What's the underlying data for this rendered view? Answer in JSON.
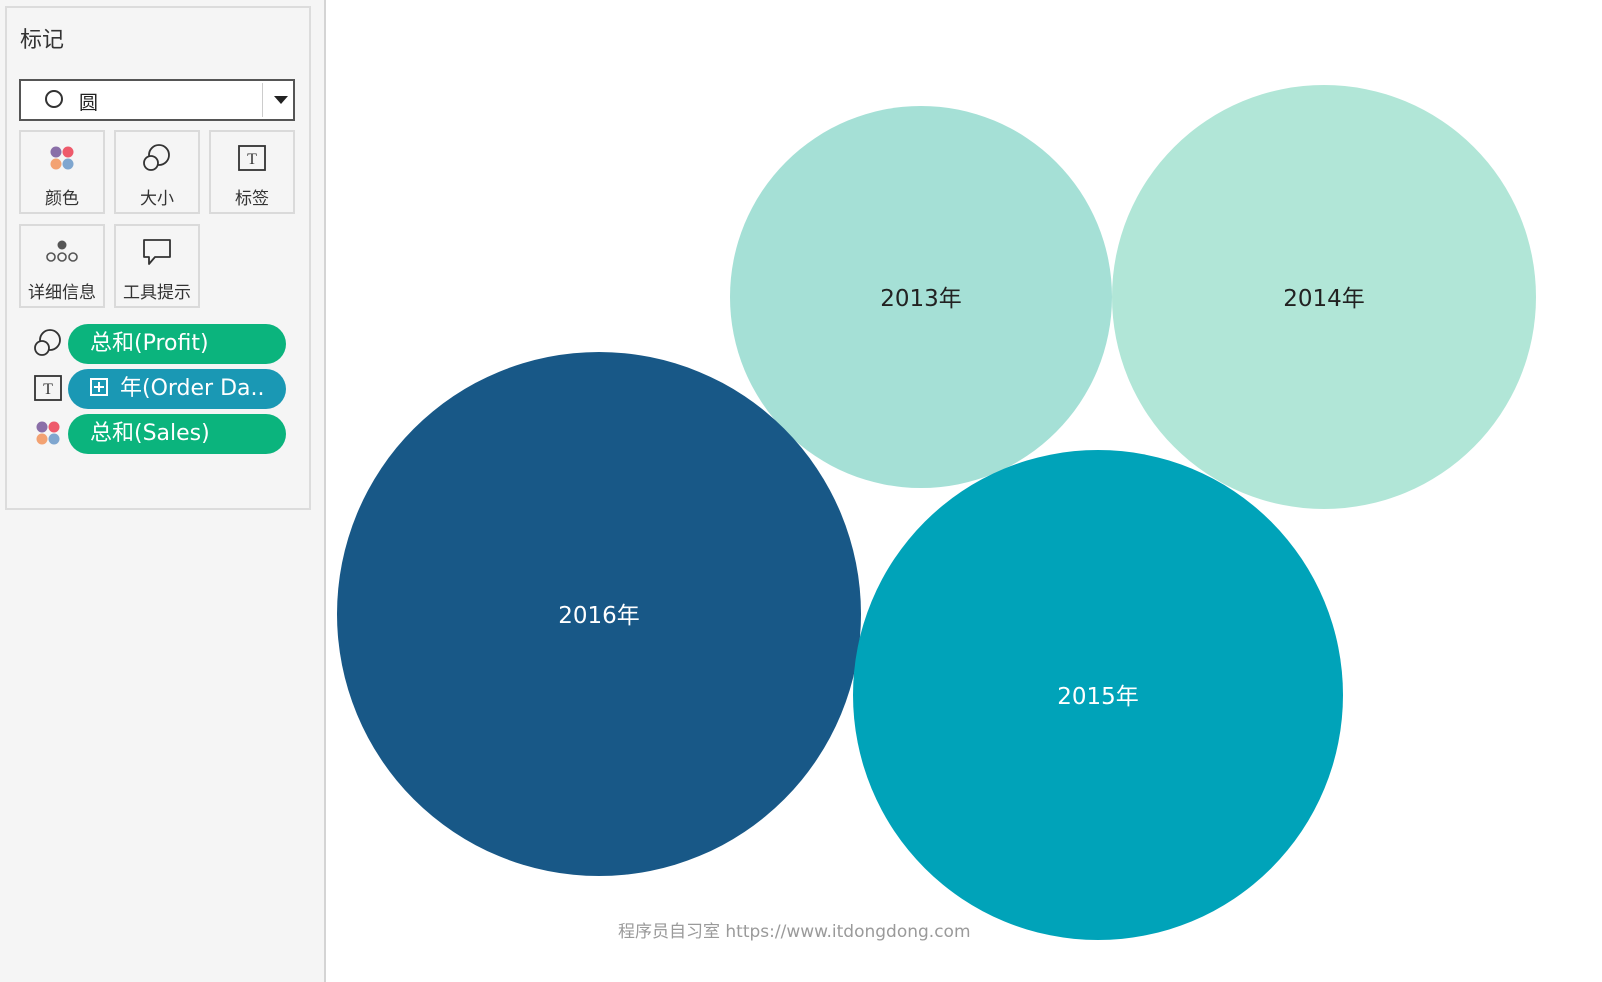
{
  "marks_card": {
    "title": "标记",
    "mark_type": {
      "icon": "circle-outline-icon",
      "label": "圆"
    },
    "buttons": [
      {
        "label": "颜色",
        "icon": "color-dots-icon"
      },
      {
        "label": "大小",
        "icon": "size-circles-icon"
      },
      {
        "label": "标签",
        "icon": "text-label-icon"
      },
      {
        "label": "详细信息",
        "icon": "detail-dots-icon"
      },
      {
        "label": "工具提示",
        "icon": "tooltip-bubble-icon"
      }
    ],
    "pills": [
      {
        "icon": "size-circles-icon",
        "label": "总和(Profit)",
        "color": "#0bb47d"
      },
      {
        "icon": "text-label-icon",
        "label": "年(Order Da..",
        "color": "#1a98b4",
        "expand_icon": "plus-box-icon"
      },
      {
        "icon": "color-dots-icon",
        "label": "总和(Sales)",
        "color": "#0bb47d"
      }
    ]
  },
  "chart_data": {
    "type": "packed-bubble",
    "categories": [
      "2013年",
      "2014年",
      "2015年",
      "2016年"
    ],
    "series": [
      {
        "category": "2013年",
        "color": "#a5e0d6",
        "label_color": "#222222"
      },
      {
        "category": "2014年",
        "color": "#b1e6d7",
        "label_color": "#222222"
      },
      {
        "category": "2015年",
        "color": "#00a3b9",
        "label_color": "#ffffff"
      },
      {
        "category": "2016年",
        "color": "#185887",
        "label_color": "#ffffff"
      }
    ],
    "size_encoding": "总和(Profit)",
    "color_encoding": "总和(Sales)",
    "label_encoding": "年(Order Da.."
  },
  "watermark": "程序员自习室 https://www.itdongdong.com"
}
